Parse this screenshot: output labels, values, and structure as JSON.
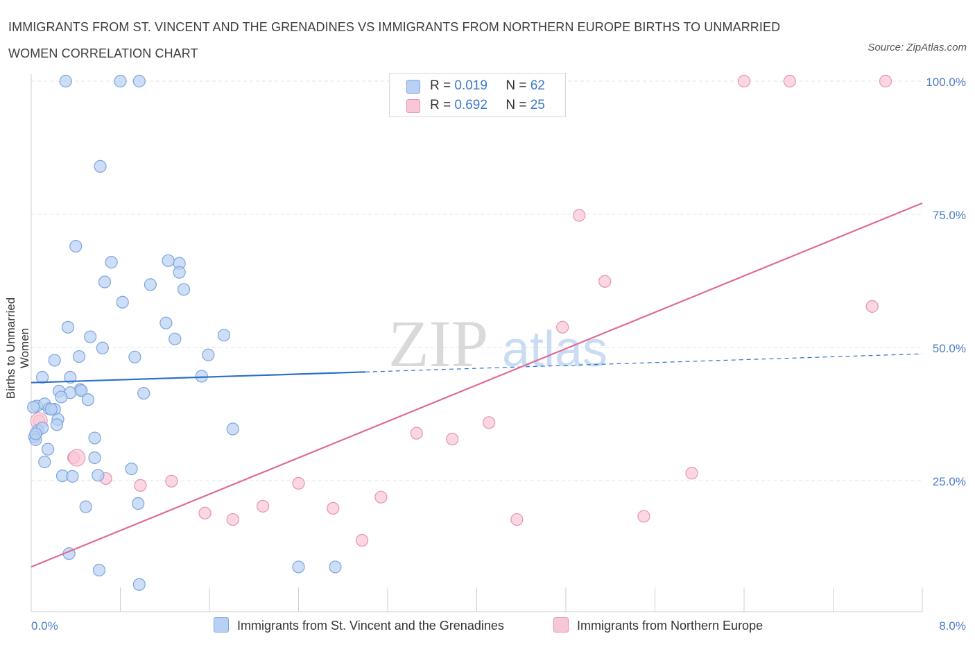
{
  "header": {
    "title": "IMMIGRANTS FROM ST. VINCENT AND THE GRENADINES VS IMMIGRANTS FROM NORTHERN EUROPE BIRTHS TO UNMARRIED WOMEN CORRELATION CHART",
    "source": "Source: ZipAtlas.com"
  },
  "watermark": {
    "zip": "ZIP",
    "atlas": "atlas"
  },
  "legend": {
    "r_label": "R =",
    "n_label": "N =",
    "series1": {
      "r": "0.019",
      "n": "62"
    },
    "series2": {
      "r": "0.692",
      "n": "25"
    }
  },
  "colors": {
    "blue_fill": "#b8d0f2",
    "blue_stroke": "#7aa5e0",
    "blue_line": "#2d6fc9",
    "pink_fill": "#f8c6d6",
    "pink_stroke": "#e892ad",
    "pink_line": "#e06a95",
    "grid": "#e3e3e3",
    "tick_text": "#4a7cc7"
  },
  "chart_data": {
    "type": "scatter",
    "title": "IMMIGRANTS FROM ST. VINCENT AND THE GRENADINES VS IMMIGRANTS FROM NORTHERN EUROPE BIRTHS TO UNMARRIED WOMEN CORRELATION CHART",
    "xlabel": "",
    "ylabel": "Births to Unmarried Women",
    "xlim": [
      0,
      8
    ],
    "ylim": [
      0,
      100
    ],
    "x_tick_labels": [
      "0.0%",
      "8.0%"
    ],
    "y_tick_labels": [
      "100.0%",
      "75.0%",
      "50.0%",
      "25.0%"
    ],
    "y_ticks": [
      100,
      75,
      50,
      25
    ],
    "grid": true,
    "legend_position": "top-center",
    "series": [
      {
        "name": "Immigrants from St. Vincent and the Grenadines",
        "color": "#7aa5e0",
        "r": 0.019,
        "n": 62,
        "trend": {
          "x": [
            0,
            3.0
          ],
          "y": [
            43.4,
            45.4
          ],
          "dashed_to": [
            8,
            48.8
          ]
        },
        "points": [
          [
            0.31,
            100
          ],
          [
            0.8,
            100
          ],
          [
            0.97,
            100
          ],
          [
            0.62,
            84
          ],
          [
            0.4,
            69
          ],
          [
            0.72,
            66
          ],
          [
            1.23,
            66.3
          ],
          [
            1.33,
            65.8
          ],
          [
            1.33,
            64.1
          ],
          [
            0.66,
            62.3
          ],
          [
            1.07,
            61.8
          ],
          [
            1.37,
            60.9
          ],
          [
            0.82,
            58.5
          ],
          [
            1.21,
            54.6
          ],
          [
            0.33,
            53.8
          ],
          [
            0.53,
            52
          ],
          [
            1.29,
            51.6
          ],
          [
            1.73,
            52.3
          ],
          [
            0.64,
            49.9
          ],
          [
            0.43,
            48.3
          ],
          [
            0.93,
            48.2
          ],
          [
            1.59,
            48.6
          ],
          [
            0.21,
            47.6
          ],
          [
            0.1,
            44.4
          ],
          [
            0.35,
            44.4
          ],
          [
            1.53,
            44.6
          ],
          [
            0.25,
            41.8
          ],
          [
            0.44,
            42.1
          ],
          [
            0.45,
            41.9
          ],
          [
            0.05,
            39
          ],
          [
            0.12,
            39.4
          ],
          [
            0.16,
            38.5
          ],
          [
            0.21,
            38.4
          ],
          [
            0.35,
            41.5
          ],
          [
            0.27,
            40.7
          ],
          [
            0.51,
            40.2
          ],
          [
            1.01,
            41.4
          ],
          [
            0.02,
            38.8
          ],
          [
            0.18,
            38.4
          ],
          [
            0.06,
            34.4
          ],
          [
            0.1,
            34.9
          ],
          [
            0.24,
            36.5
          ],
          [
            0.23,
            35.5
          ],
          [
            0.03,
            33.2
          ],
          [
            0.04,
            32.7
          ],
          [
            0.57,
            33
          ],
          [
            0.15,
            30.9
          ],
          [
            0.12,
            28.5
          ],
          [
            0.57,
            29.3
          ],
          [
            0.9,
            27.2
          ],
          [
            1.81,
            34.7
          ],
          [
            0.28,
            25.9
          ],
          [
            0.37,
            25.8
          ],
          [
            0.6,
            26
          ],
          [
            0.96,
            20.7
          ],
          [
            0.49,
            20.1
          ],
          [
            0.34,
            11.3
          ],
          [
            0.61,
            8.2
          ],
          [
            0.97,
            5.5
          ],
          [
            2.4,
            8.8
          ],
          [
            2.73,
            8.8
          ],
          [
            0.04,
            33.8
          ]
        ]
      },
      {
        "name": "Immigrants from Northern Europe",
        "color": "#e892ad",
        "r": 0.692,
        "n": 25,
        "trend": {
          "x": [
            0,
            8
          ],
          "y": [
            8.8,
            77.1
          ]
        },
        "points": [
          [
            6.4,
            100
          ],
          [
            6.81,
            100
          ],
          [
            7.67,
            100
          ],
          [
            4.92,
            74.8
          ],
          [
            5.15,
            62.4
          ],
          [
            7.55,
            57.7
          ],
          [
            4.77,
            53.8
          ],
          [
            4.11,
            35.9
          ],
          [
            3.46,
            33.9
          ],
          [
            3.78,
            32.8
          ],
          [
            0.07,
            36.2
          ],
          [
            0.38,
            29.3
          ],
          [
            0.67,
            25.4
          ],
          [
            0.98,
            24.1
          ],
          [
            1.26,
            24.9
          ],
          [
            2.4,
            24.5
          ],
          [
            5.93,
            26.4
          ],
          [
            3.14,
            21.9
          ],
          [
            2.08,
            20.2
          ],
          [
            2.71,
            19.8
          ],
          [
            1.56,
            18.9
          ],
          [
            1.81,
            17.7
          ],
          [
            4.36,
            17.7
          ],
          [
            5.5,
            18.3
          ],
          [
            2.97,
            13.8
          ]
        ]
      }
    ]
  }
}
